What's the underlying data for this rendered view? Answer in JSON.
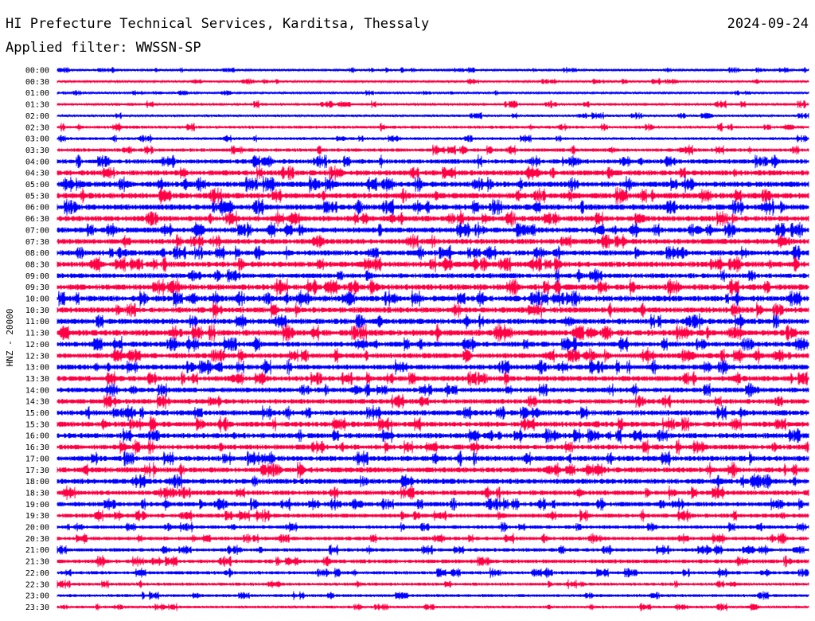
{
  "header": {
    "title": "HI Prefecture Technical Services, Karditsa, Thessaly",
    "date": "2024-09-24",
    "filter": "Applied filter: WWSSN-SP"
  },
  "chart_data": {
    "type": "line",
    "title": "HI Prefecture Technical Services, Karditsa, Thessaly",
    "ylabel": "HNZ - 20000",
    "row_labels": [
      "00:00",
      "00:30",
      "01:00",
      "01:30",
      "02:00",
      "02:30",
      "03:00",
      "03:30",
      "04:00",
      "04:30",
      "05:00",
      "05:30",
      "06:00",
      "06:30",
      "07:00",
      "07:30",
      "08:00",
      "08:30",
      "09:00",
      "09:30",
      "10:00",
      "10:30",
      "11:00",
      "11:30",
      "12:00",
      "12:30",
      "13:00",
      "13:30",
      "14:00",
      "14:30",
      "15:00",
      "15:30",
      "16:00",
      "16:30",
      "17:00",
      "17:30",
      "18:00",
      "18:30",
      "19:00",
      "19:30",
      "20:00",
      "20:30",
      "21:00",
      "21:30",
      "22:00",
      "22:30",
      "23:00",
      "23:30"
    ],
    "noise_level": [
      0.08,
      0.1,
      0.08,
      0.18,
      0.14,
      0.22,
      0.2,
      0.3,
      0.45,
      0.55,
      0.6,
      0.62,
      0.62,
      0.58,
      0.55,
      0.55,
      0.55,
      0.6,
      0.5,
      0.62,
      0.62,
      0.6,
      0.6,
      0.65,
      0.55,
      0.55,
      0.55,
      0.55,
      0.5,
      0.5,
      0.55,
      0.55,
      0.55,
      0.5,
      0.55,
      0.55,
      0.55,
      0.5,
      0.45,
      0.4,
      0.3,
      0.32,
      0.3,
      0.35,
      0.28,
      0.24,
      0.22,
      0.18
    ],
    "colors": [
      "#0000ff",
      "#ff0044"
    ],
    "grid": false
  }
}
